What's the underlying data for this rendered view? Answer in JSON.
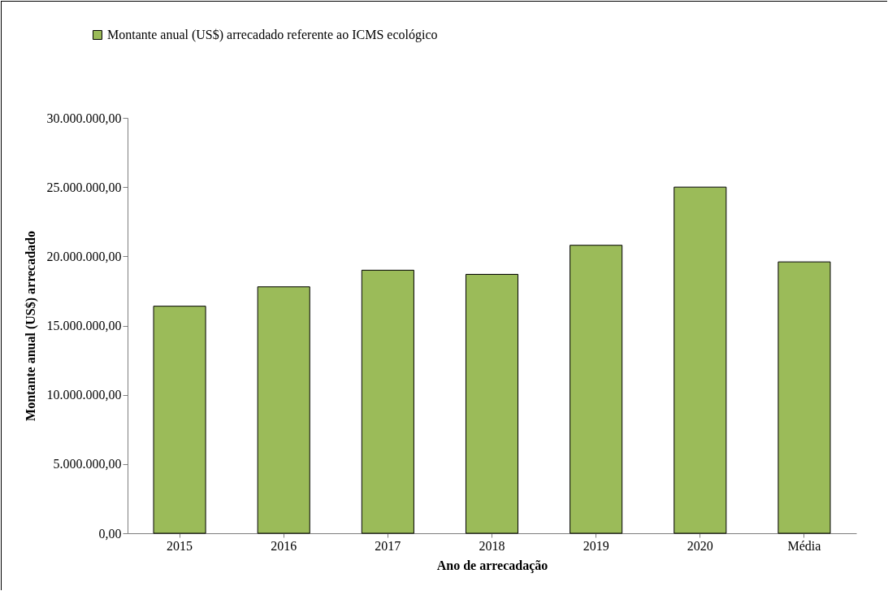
{
  "chart_data": {
    "type": "bar",
    "xlabel": "Ano de arrecadação",
    "ylabel": "Montante anual (US$) arrecadado",
    "legend": "top left",
    "categories": [
      "2015",
      "2016",
      "2017",
      "2018",
      "2019",
      "2020",
      "Média"
    ],
    "series": [
      {
        "name": "Montante anual (US$) arrecadado referente ao ICMS ecológico",
        "color": "#9bbb59",
        "values": [
          16400000,
          17800000,
          19000000,
          18700000,
          20800000,
          25000000,
          19600000
        ]
      }
    ],
    "ylim": [
      0,
      30000000
    ],
    "yticks": [
      {
        "value": 0,
        "label": "0,00"
      },
      {
        "value": 5000000,
        "label": "5.000.000,00"
      },
      {
        "value": 10000000,
        "label": "10.000.000,00"
      },
      {
        "value": 15000000,
        "label": "15.000.000,00"
      },
      {
        "value": 20000000,
        "label": "20.000.000,00"
      },
      {
        "value": 25000000,
        "label": "25.000.000,00"
      },
      {
        "value": 30000000,
        "label": "30.000.000,00"
      }
    ],
    "grid": false
  }
}
